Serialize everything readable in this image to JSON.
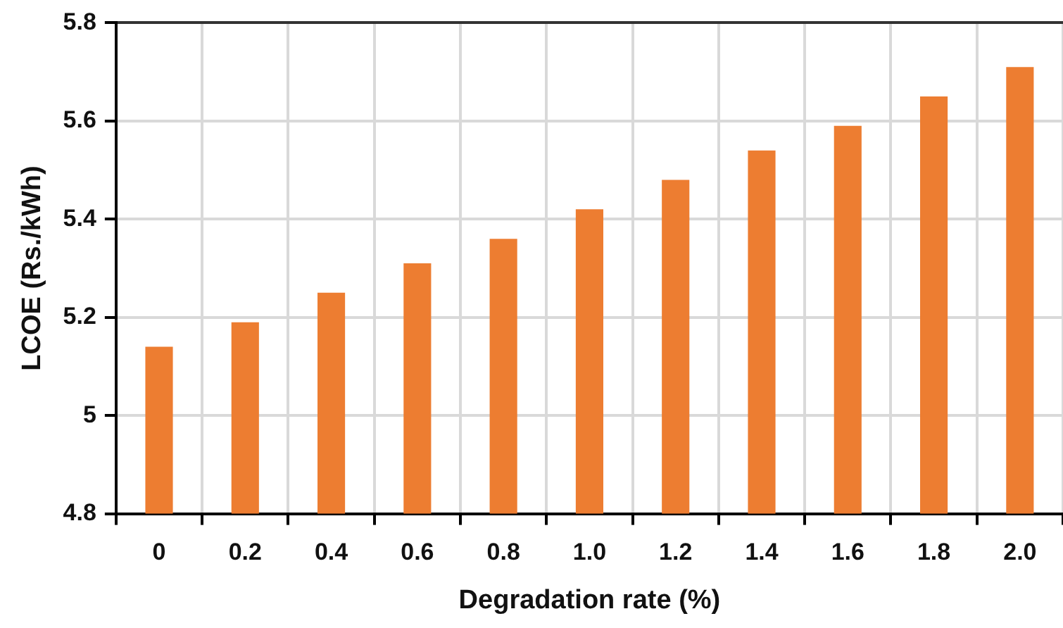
{
  "chart_data": {
    "type": "bar",
    "xlabel": "Degradation rate (%)",
    "ylabel": "LCOE (Rs./kWh)",
    "categories": [
      "0",
      "0.2",
      "0.4",
      "0.6",
      "0.8",
      "1.0",
      "1.2",
      "1.4",
      "1.6",
      "1.8",
      "2.0"
    ],
    "values": [
      5.14,
      5.19,
      5.25,
      5.31,
      5.36,
      5.42,
      5.48,
      5.54,
      5.59,
      5.65,
      5.71
    ],
    "color": "#ed7d31",
    "ylim": [
      4.8,
      5.8
    ],
    "yticks": [
      4.8,
      5,
      5.2,
      5.4,
      5.6,
      5.8
    ],
    "grid": true
  }
}
